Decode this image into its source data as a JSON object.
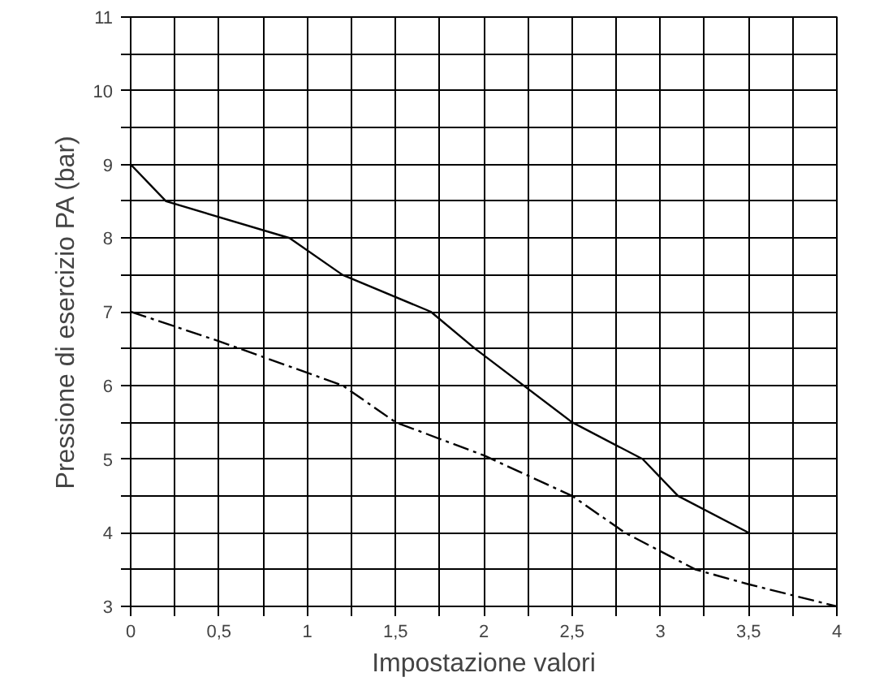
{
  "chart_data": {
    "type": "line",
    "xlabel": "Impostazione valori",
    "ylabel": "Pressione di esercizio PA (bar)",
    "series": [
      {
        "color": "#000000",
        "line_style": "solid",
        "x": [
          0,
          0.2,
          0.9,
          1.2,
          1.7,
          1.95,
          2.5,
          2.9,
          3.1,
          3.5
        ],
        "values": [
          9,
          8.5,
          8.0,
          7.5,
          7.0,
          6.5,
          5.5,
          5.0,
          4.5,
          4.0
        ]
      },
      {
        "color": "#000000",
        "line_style": "dashed",
        "x": [
          0,
          0.5,
          1.2,
          1.5,
          2.0,
          2.5,
          2.8,
          3.2,
          3.5,
          4.0
        ],
        "values": [
          7,
          6.6,
          6.0,
          5.5,
          5.05,
          4.5,
          4.0,
          3.5,
          3.3,
          3.0
        ]
      }
    ],
    "xlim": [
      0,
      4
    ],
    "xticks": [
      0,
      {
        "value": 0.25,
        "label": null
      },
      {
        "value": 0.5,
        "label": "0,5"
      },
      {
        "value": 0.75,
        "label": null
      },
      1,
      {
        "value": 1.25,
        "label": null
      },
      {
        "value": 1.5,
        "label": "1,5"
      },
      {
        "value": 1.75,
        "label": null
      },
      2,
      {
        "value": 2.25,
        "label": null
      },
      {
        "value": 2.5,
        "label": "2,5"
      },
      {
        "value": 2.75,
        "label": null
      },
      3,
      {
        "value": 3.25,
        "label": null
      },
      {
        "value": 3.5,
        "label": "3,5"
      },
      {
        "value": 3.75,
        "label": null
      },
      4
    ],
    "ylim": [
      3,
      11
    ],
    "yticks": [
      3,
      {
        "value": 3.5,
        "label": null
      },
      4,
      {
        "value": 4.5,
        "label": null
      },
      5,
      {
        "value": 5.5,
        "label": null
      },
      6,
      {
        "value": 6.5,
        "label": null
      },
      7,
      {
        "value": 7.5,
        "label": null
      },
      8,
      {
        "value": 8.5,
        "label": null
      },
      9,
      {
        "value": 9.5,
        "label": null
      },
      10,
      {
        "value": 10.5,
        "label": null
      },
      11
    ],
    "grid": true,
    "marker": "none"
  }
}
